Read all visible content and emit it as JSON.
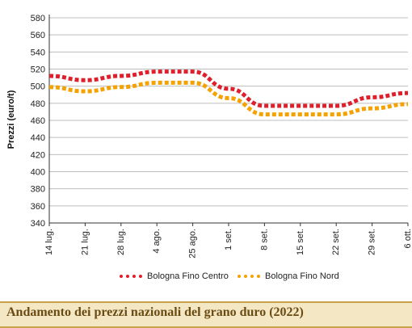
{
  "chart_data": {
    "type": "line",
    "title": "Andamento dei prezzi nazionali del grano duro (2022)",
    "ylabel": "Prezzi (euro/t)",
    "xlabel": "",
    "ylim": [
      340,
      580
    ],
    "yticks": [
      "580",
      "560",
      "540",
      "520",
      "500",
      "480",
      "460",
      "440",
      "420",
      "400",
      "380",
      "360",
      "340"
    ],
    "categories": [
      "14 lug.",
      "21 lug.",
      "28 lug.",
      "4 ago.",
      "25 ago.",
      "1 set.",
      "8 set.",
      "15 set.",
      "22 set.",
      "29 set.",
      "6 ott."
    ],
    "grid": "horizontal",
    "legend_position": "bottom",
    "series": [
      {
        "name": "Bologna Fino Centro",
        "color": "#e01f2d",
        "values": [
          512,
          507,
          512,
          517,
          517,
          497,
          477,
          477,
          477,
          487,
          492
        ]
      },
      {
        "name": "Bologna Fino Nord",
        "color": "#f5a100",
        "values": [
          499,
          494,
          499,
          504,
          504,
          486,
          467,
          467,
          467,
          474,
          479
        ]
      }
    ]
  }
}
